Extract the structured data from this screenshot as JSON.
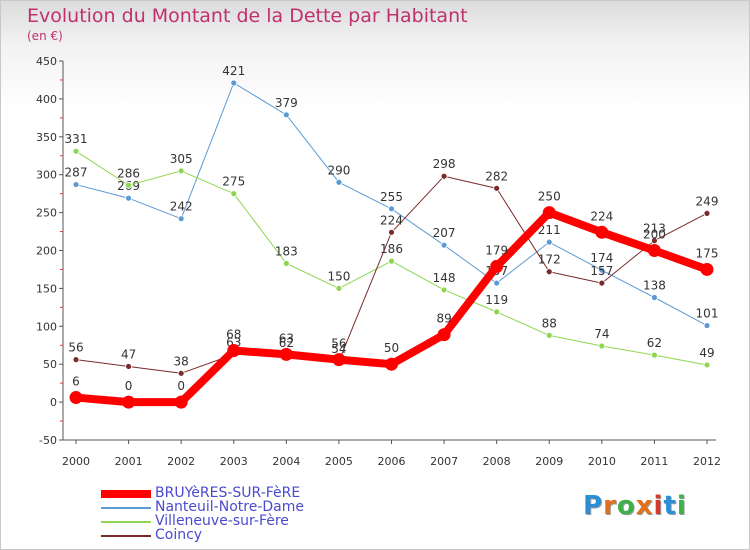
{
  "title": "Evolution du Montant de la Dette par Habitant",
  "unit": "(en €)",
  "logo": {
    "text": "Proxiti",
    "letter_colors": [
      "#2a8fd6",
      "#e0701c",
      "#3cb04a",
      "#e0701c",
      "#d43a2e",
      "#2a8fd6",
      "#3cb04a"
    ]
  },
  "chart_data": {
    "type": "line",
    "x": [
      "2000",
      "2001",
      "2002",
      "2003",
      "2004",
      "2005",
      "2006",
      "2007",
      "2008",
      "2009",
      "2010",
      "2011",
      "2012"
    ],
    "ylim": [
      -50,
      450
    ],
    "yticks": [
      -50,
      0,
      50,
      100,
      150,
      200,
      250,
      300,
      350,
      400,
      450
    ],
    "grid": false,
    "legend_position": "bottom-left",
    "series": [
      {
        "name": "Nanteuil-Notre-Dame",
        "color": "#5b9bd5",
        "width": 1,
        "values": [
          287,
          269,
          242,
          421,
          379,
          290,
          255,
          207,
          157,
          211,
          174,
          138,
          101
        ]
      },
      {
        "name": "Villeneuve-sur-Fère",
        "color": "#8fd650",
        "width": 1,
        "values": [
          331,
          286,
          305,
          275,
          183,
          150,
          186,
          148,
          119,
          88,
          74,
          62,
          49
        ]
      },
      {
        "name": "Coincy",
        "color": "#7a2a2a",
        "width": 1,
        "values": [
          56,
          47,
          38,
          63,
          62,
          54,
          224,
          298,
          282,
          172,
          157,
          213,
          249
        ]
      },
      {
        "name": "BRUYèRES-SUR-FèRE",
        "color": "#ff0000",
        "width": 8,
        "values": [
          6,
          0,
          0,
          68,
          63,
          56,
          50,
          89,
          179,
          250,
          224,
          200,
          175
        ]
      }
    ],
    "legend_order": [
      "BRUYèRES-SUR-FèRE",
      "Nanteuil-Notre-Dame",
      "Villeneuve-sur-Fère",
      "Coincy"
    ]
  }
}
